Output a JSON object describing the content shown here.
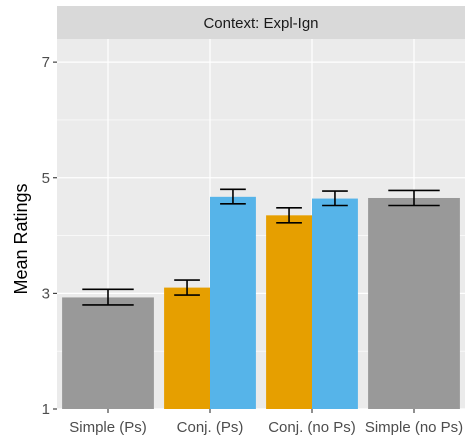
{
  "chart_data": {
    "type": "bar",
    "facet_label": "Context: Expl-Ign",
    "xlabel": "",
    "ylabel": "Mean Ratings",
    "ylim": [
      1,
      7.4
    ],
    "y_ticks": [
      1,
      3,
      5,
      7
    ],
    "grid": true,
    "categories": [
      "Simple (Ps)",
      "Conj. (Ps)",
      "Conj. (no Ps)",
      "Simple (no Ps)"
    ],
    "bars": [
      {
        "category": "Simple (Ps)",
        "slot": 0,
        "width": 1,
        "value": 2.93,
        "err_low": 2.8,
        "err_high": 3.07,
        "color": "#999999"
      },
      {
        "category": "Conj. (Ps)",
        "slot": 0,
        "width": 2,
        "value": 3.1,
        "err_low": 2.97,
        "err_high": 3.23,
        "color": "#E69F00"
      },
      {
        "category": "Conj. (Ps)",
        "slot": 1,
        "width": 2,
        "value": 4.67,
        "err_low": 4.55,
        "err_high": 4.8,
        "color": "#56B4E9"
      },
      {
        "category": "Conj. (no Ps)",
        "slot": 0,
        "width": 2,
        "value": 4.35,
        "err_low": 4.22,
        "err_high": 4.48,
        "color": "#E69F00"
      },
      {
        "category": "Conj. (no Ps)",
        "slot": 1,
        "width": 2,
        "value": 4.64,
        "err_low": 4.52,
        "err_high": 4.77,
        "color": "#56B4E9"
      },
      {
        "category": "Simple (no Ps)",
        "slot": 0,
        "width": 1,
        "value": 4.65,
        "err_low": 4.52,
        "err_high": 4.78,
        "color": "#999999"
      }
    ],
    "colors": {
      "panel_bg": "#EBEBEB",
      "strip_bg": "#D9D9D9",
      "grid": "#FFFFFF"
    }
  }
}
